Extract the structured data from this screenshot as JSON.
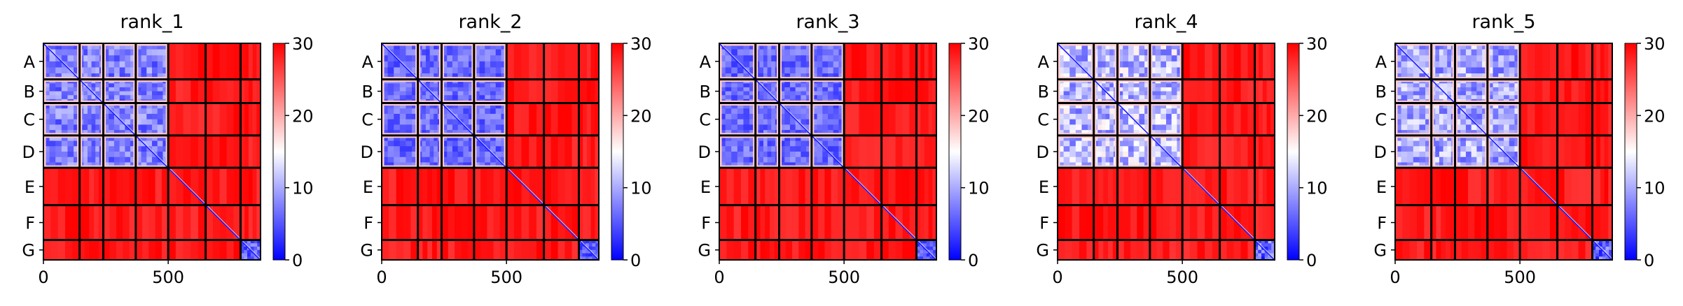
{
  "chart_data": {
    "type": "heatmap",
    "colorbar": {
      "min": 0,
      "max": 30,
      "ticks": [
        0,
        10,
        20,
        30
      ],
      "colormap": "bwr"
    },
    "axis": {
      "x_ticks": [
        0,
        500
      ],
      "x_range": [
        0,
        870
      ],
      "y_ticks": [
        "A",
        "B",
        "C",
        "D",
        "E",
        "F",
        "G"
      ]
    },
    "chains": [
      {
        "label": "A",
        "start": 0,
        "end": 145
      },
      {
        "label": "B",
        "start": 145,
        "end": 240
      },
      {
        "label": "C",
        "start": 240,
        "end": 370
      },
      {
        "label": "D",
        "start": 370,
        "end": 500
      },
      {
        "label": "E",
        "start": 500,
        "end": 650
      },
      {
        "label": "F",
        "start": 650,
        "end": 790
      },
      {
        "label": "G",
        "start": 790,
        "end": 870
      }
    ],
    "panels": [
      {
        "title": "rank_1",
        "low_block_chains": [
          "A",
          "B",
          "C",
          "D"
        ],
        "low_block_value": 6,
        "contrast": 0.25
      },
      {
        "title": "rank_2",
        "low_block_chains": [
          "A",
          "B",
          "C",
          "D"
        ],
        "low_block_value": 5,
        "contrast": 0.2
      },
      {
        "title": "rank_3",
        "low_block_chains": [
          "A",
          "B",
          "C",
          "D"
        ],
        "low_block_value": 5,
        "contrast": 0.2
      },
      {
        "title": "rank_4",
        "low_block_chains": [
          "A",
          "B",
          "C",
          "D"
        ],
        "low_block_value": 9,
        "contrast": 0.35
      },
      {
        "title": "rank_5",
        "low_block_chains": [
          "A",
          "B",
          "C",
          "D"
        ],
        "low_block_value": 8,
        "contrast": 0.3
      }
    ],
    "colors": {
      "high": "#ff0000",
      "mid": "#ffffff",
      "low": "#0000ff",
      "border": "#000000"
    }
  }
}
